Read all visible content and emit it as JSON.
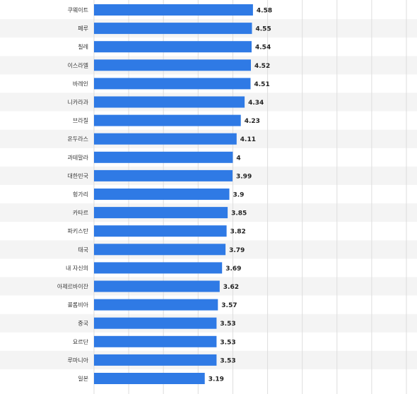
{
  "chart_data": {
    "type": "bar",
    "orientation": "horizontal",
    "categories": [
      "쿠웨이트",
      "페루",
      "칠레",
      "이스라엘",
      "바레인",
      "니카라과",
      "브라질",
      "온두라스",
      "과테말라",
      "대한민국",
      "헝가리",
      "카타르",
      "파키스탄",
      "태국",
      "내 자신의",
      "아제르바이잔",
      "콜롬비아",
      "중국",
      "요르단",
      "루마니아",
      "일본"
    ],
    "values": [
      4.58,
      4.55,
      4.54,
      4.52,
      4.51,
      4.34,
      4.23,
      4.11,
      4,
      3.99,
      3.9,
      3.85,
      3.82,
      3.79,
      3.69,
      3.62,
      3.57,
      3.53,
      3.53,
      3.53,
      3.19
    ],
    "value_labels": [
      "4.58",
      "4.55",
      "4.54",
      "4.52",
      "4.51",
      "4.34",
      "4.23",
      "4.11",
      "4",
      "3.99",
      "3.9",
      "3.85",
      "3.82",
      "3.79",
      "3.69",
      "3.62",
      "3.57",
      "3.53",
      "3.53",
      "3.53",
      "3.19"
    ],
    "xlim": [
      0,
      9
    ],
    "grid": true,
    "bar_color": "#2f7ae5",
    "stripe_color": "#f4f4f4",
    "grid_color": "#dddddd"
  }
}
